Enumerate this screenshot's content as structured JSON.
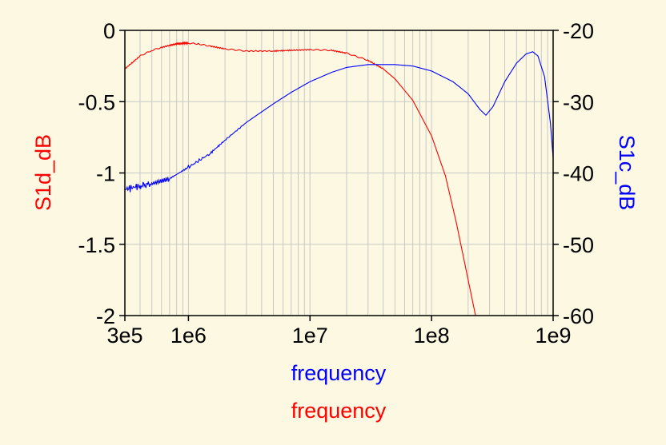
{
  "chart_data": {
    "type": "line",
    "x_scale": "log",
    "xlim": [
      300000,
      1000000000
    ],
    "x_tick_values": [
      300000,
      1000000,
      10000000,
      100000000,
      1000000000
    ],
    "x_tick_labels": [
      "3e5",
      "1e6",
      "1e7",
      "1e8",
      "1e9"
    ],
    "xlabels": [
      {
        "text": "frequency",
        "color": "#0000ff"
      },
      {
        "text": "frequency",
        "color": "#ff0000"
      }
    ],
    "y_left": {
      "label": "S1d_dB",
      "color": "#ff0000",
      "lim": [
        -2,
        0
      ],
      "tick_values": [
        0,
        -0.5,
        -1,
        -1.5,
        -2
      ],
      "tick_labels": [
        "0",
        "-0.5",
        "-1",
        "-1.5",
        "-2"
      ]
    },
    "y_right": {
      "label": "S1c_dB",
      "color": "#0000ff",
      "lim": [
        -60,
        -20
      ],
      "tick_values": [
        -20,
        -30,
        -40,
        -50,
        -60
      ],
      "tick_labels": [
        "-20",
        "-30",
        "-40",
        "-50",
        "-60"
      ]
    },
    "grid": true,
    "series": [
      {
        "name": "S1d_dB",
        "axis": "left",
        "color": "#ff0000",
        "x": [
          300000,
          400000,
          500000,
          600000,
          700000,
          800000,
          900000,
          1000000,
          1200000,
          1500000,
          2000000,
          3000000,
          5000000,
          7000000,
          10000000,
          15000000,
          20000000,
          30000000,
          40000000,
          50000000,
          70000000,
          100000000,
          130000000,
          160000000,
          200000000,
          230000000
        ],
        "y": [
          -0.27,
          -0.18,
          -0.14,
          -0.12,
          -0.105,
          -0.095,
          -0.09,
          -0.09,
          -0.095,
          -0.11,
          -0.13,
          -0.145,
          -0.145,
          -0.14,
          -0.135,
          -0.14,
          -0.16,
          -0.21,
          -0.27,
          -0.34,
          -0.49,
          -0.74,
          -1.02,
          -1.35,
          -1.75,
          -2.0
        ]
      },
      {
        "name": "S1c_dB",
        "axis": "right",
        "color": "#0000ff",
        "x": [
          300000,
          400000,
          500000,
          700000,
          1000000,
          1500000,
          2000000,
          3000000,
          5000000,
          7000000,
          10000000,
          15000000,
          20000000,
          30000000,
          50000000,
          70000000,
          100000000,
          150000000,
          200000000,
          250000000,
          280000000,
          320000000,
          400000000,
          500000000,
          600000000,
          680000000,
          750000000,
          850000000,
          950000000,
          1000000000
        ],
        "y": [
          -42.3,
          -41.8,
          -41.5,
          -40.8,
          -39.2,
          -37.3,
          -35.4,
          -32.9,
          -30.3,
          -28.7,
          -27.2,
          -25.9,
          -25.2,
          -24.8,
          -24.8,
          -25.0,
          -25.7,
          -27.2,
          -28.9,
          -31.1,
          -31.9,
          -30.7,
          -27.2,
          -24.6,
          -23.3,
          -23.0,
          -23.6,
          -26.5,
          -33.0,
          -37.9
        ]
      }
    ]
  }
}
